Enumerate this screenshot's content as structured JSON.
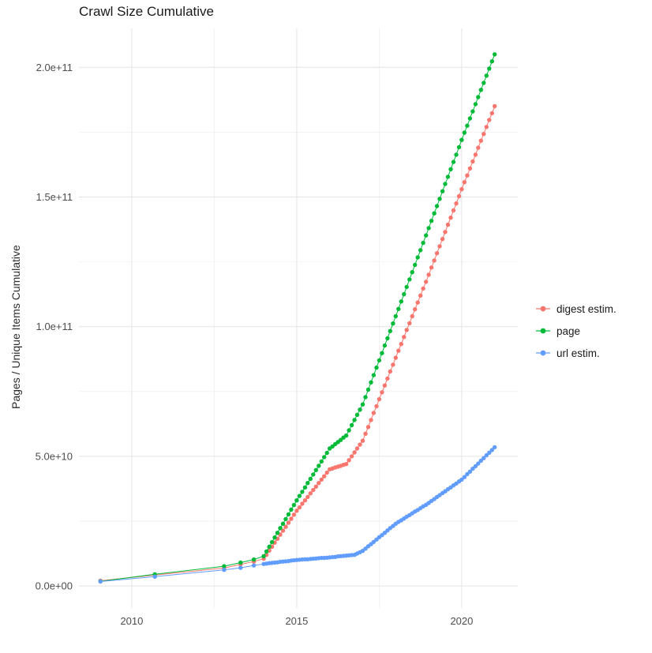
{
  "chart_data": {
    "type": "scatter",
    "title": "Crawl Size Cumulative",
    "xlabel": "",
    "ylabel": "Pages / Unique Items Cumulative",
    "legend_position": "right",
    "grid": true,
    "unit": 1000000000,
    "xlim": [
      2008.4,
      2021.7
    ],
    "ylim_e9": [
      -8.5,
      215
    ],
    "x_ticks": [
      {
        "v": 2010,
        "label": "2010"
      },
      {
        "v": 2015,
        "label": "2015"
      },
      {
        "v": 2020,
        "label": "2020"
      }
    ],
    "x_minor": [
      2012.5,
      2017.5
    ],
    "y_ticks": [
      {
        "v": 0,
        "label": "0.0e+00"
      },
      {
        "v": 50,
        "label": "5.0e+10"
      },
      {
        "v": 100,
        "label": "1.0e+11"
      },
      {
        "v": 150,
        "label": "1.5e+11"
      },
      {
        "v": 200,
        "label": "2.0e+11"
      }
    ],
    "y_minor": [
      25,
      75,
      125,
      175
    ],
    "colors": {
      "grid_major": "#e4e4e4",
      "grid_minor": "#f2f2f2",
      "axis_text": "#4d4d4d"
    },
    "series": [
      {
        "name": "digest estim.",
        "key": "digest-estim",
        "color": "#F8766D",
        "points_e9": [
          [
            2009.05,
            2.0
          ],
          [
            2010.7,
            4.2
          ],
          [
            2012.8,
            6.9
          ],
          [
            2013.3,
            8.3
          ],
          [
            2013.7,
            9.4
          ],
          [
            2014.0,
            10.5
          ],
          [
            2014.083,
            12.0
          ],
          [
            2014.167,
            13.6
          ],
          [
            2014.25,
            15.1
          ],
          [
            2014.333,
            16.7
          ],
          [
            2014.417,
            18.2
          ],
          [
            2014.5,
            19.8
          ],
          [
            2014.583,
            21.3
          ],
          [
            2014.667,
            22.8
          ],
          [
            2014.75,
            24.4
          ],
          [
            2014.833,
            25.9
          ],
          [
            2014.917,
            27.5
          ],
          [
            2015.0,
            29.0
          ],
          [
            2015.083,
            30.3
          ],
          [
            2015.167,
            31.7
          ],
          [
            2015.25,
            33.0
          ],
          [
            2015.333,
            34.3
          ],
          [
            2015.417,
            35.7
          ],
          [
            2015.5,
            37.0
          ],
          [
            2015.583,
            38.3
          ],
          [
            2015.667,
            39.7
          ],
          [
            2015.75,
            41.0
          ],
          [
            2015.833,
            42.3
          ],
          [
            2015.917,
            43.7
          ],
          [
            2016.0,
            45.0
          ],
          [
            2016.083,
            45.3
          ],
          [
            2016.167,
            45.7
          ],
          [
            2016.25,
            46.0
          ],
          [
            2016.333,
            46.3
          ],
          [
            2016.417,
            46.7
          ],
          [
            2016.5,
            47.0
          ],
          [
            2016.583,
            48.5
          ],
          [
            2016.667,
            50.0
          ],
          [
            2016.75,
            51.5
          ],
          [
            2016.833,
            53.0
          ],
          [
            2016.917,
            54.5
          ],
          [
            2017.0,
            56.0
          ],
          [
            2017.083,
            58.7
          ],
          [
            2017.167,
            61.3
          ],
          [
            2017.25,
            64.0
          ],
          [
            2017.333,
            66.7
          ],
          [
            2017.417,
            69.3
          ],
          [
            2017.5,
            72.0
          ],
          [
            2017.583,
            74.7
          ],
          [
            2017.667,
            77.3
          ],
          [
            2017.75,
            80.0
          ],
          [
            2017.833,
            82.7
          ],
          [
            2017.917,
            85.3
          ],
          [
            2018.0,
            88.0
          ],
          [
            2018.083,
            90.7
          ],
          [
            2018.167,
            93.3
          ],
          [
            2018.25,
            96.0
          ],
          [
            2018.333,
            98.7
          ],
          [
            2018.417,
            101.3
          ],
          [
            2018.5,
            104.0
          ],
          [
            2018.583,
            106.7
          ],
          [
            2018.667,
            109.3
          ],
          [
            2018.75,
            112.0
          ],
          [
            2018.833,
            114.7
          ],
          [
            2018.917,
            117.3
          ],
          [
            2019.0,
            120.0
          ],
          [
            2019.083,
            122.8
          ],
          [
            2019.167,
            125.5
          ],
          [
            2019.25,
            128.3
          ],
          [
            2019.333,
            131.0
          ],
          [
            2019.417,
            133.8
          ],
          [
            2019.5,
            136.5
          ],
          [
            2019.583,
            139.3
          ],
          [
            2019.667,
            142.0
          ],
          [
            2019.75,
            144.8
          ],
          [
            2019.833,
            147.5
          ],
          [
            2019.917,
            150.3
          ],
          [
            2020.0,
            153.0
          ],
          [
            2020.083,
            155.7
          ],
          [
            2020.167,
            158.3
          ],
          [
            2020.25,
            161.0
          ],
          [
            2020.333,
            163.7
          ],
          [
            2020.417,
            166.3
          ],
          [
            2020.5,
            169.0
          ],
          [
            2020.583,
            171.7
          ],
          [
            2020.667,
            174.3
          ],
          [
            2020.75,
            177.0
          ],
          [
            2020.833,
            179.7
          ],
          [
            2020.917,
            182.3
          ],
          [
            2021.0,
            185.0
          ]
        ]
      },
      {
        "name": "page",
        "key": "page",
        "color": "#00BA38",
        "points_e9": [
          [
            2009.05,
            1.8
          ],
          [
            2010.7,
            4.5
          ],
          [
            2012.8,
            7.6
          ],
          [
            2013.3,
            9.0
          ],
          [
            2013.7,
            10.2
          ],
          [
            2014.0,
            11.5
          ],
          [
            2014.083,
            13.3
          ],
          [
            2014.167,
            15.1
          ],
          [
            2014.25,
            16.9
          ],
          [
            2014.333,
            18.7
          ],
          [
            2014.417,
            20.5
          ],
          [
            2014.5,
            22.3
          ],
          [
            2014.583,
            24.0
          ],
          [
            2014.667,
            25.8
          ],
          [
            2014.75,
            27.6
          ],
          [
            2014.833,
            29.4
          ],
          [
            2014.917,
            31.2
          ],
          [
            2015.0,
            33.0
          ],
          [
            2015.083,
            34.7
          ],
          [
            2015.167,
            36.3
          ],
          [
            2015.25,
            38.0
          ],
          [
            2015.333,
            39.7
          ],
          [
            2015.417,
            41.3
          ],
          [
            2015.5,
            43.0
          ],
          [
            2015.583,
            44.7
          ],
          [
            2015.667,
            46.3
          ],
          [
            2015.75,
            48.0
          ],
          [
            2015.833,
            49.7
          ],
          [
            2015.917,
            51.3
          ],
          [
            2016.0,
            53.0
          ],
          [
            2016.083,
            53.8
          ],
          [
            2016.167,
            54.7
          ],
          [
            2016.25,
            55.5
          ],
          [
            2016.333,
            56.3
          ],
          [
            2016.417,
            57.2
          ],
          [
            2016.5,
            58.0
          ],
          [
            2016.583,
            60.0
          ],
          [
            2016.667,
            62.0
          ],
          [
            2016.75,
            64.0
          ],
          [
            2016.833,
            66.0
          ],
          [
            2016.917,
            68.0
          ],
          [
            2017.0,
            70.0
          ],
          [
            2017.083,
            72.8
          ],
          [
            2017.167,
            75.7
          ],
          [
            2017.25,
            78.5
          ],
          [
            2017.333,
            81.3
          ],
          [
            2017.417,
            84.2
          ],
          [
            2017.5,
            87.0
          ],
          [
            2017.583,
            89.8
          ],
          [
            2017.667,
            92.7
          ],
          [
            2017.75,
            95.5
          ],
          [
            2017.833,
            98.3
          ],
          [
            2017.917,
            101.2
          ],
          [
            2018.0,
            104.0
          ],
          [
            2018.083,
            106.8
          ],
          [
            2018.167,
            109.7
          ],
          [
            2018.25,
            112.5
          ],
          [
            2018.333,
            115.3
          ],
          [
            2018.417,
            118.2
          ],
          [
            2018.5,
            121.0
          ],
          [
            2018.583,
            123.8
          ],
          [
            2018.667,
            126.7
          ],
          [
            2018.75,
            129.5
          ],
          [
            2018.833,
            132.3
          ],
          [
            2018.917,
            135.2
          ],
          [
            2019.0,
            138.0
          ],
          [
            2019.083,
            140.8
          ],
          [
            2019.167,
            143.7
          ],
          [
            2019.25,
            146.5
          ],
          [
            2019.333,
            149.3
          ],
          [
            2019.417,
            152.2
          ],
          [
            2019.5,
            155.0
          ],
          [
            2019.583,
            157.8
          ],
          [
            2019.667,
            160.7
          ],
          [
            2019.75,
            163.5
          ],
          [
            2019.833,
            166.3
          ],
          [
            2019.917,
            169.2
          ],
          [
            2020.0,
            172.0
          ],
          [
            2020.083,
            174.8
          ],
          [
            2020.167,
            177.5
          ],
          [
            2020.25,
            180.3
          ],
          [
            2020.333,
            183.0
          ],
          [
            2020.417,
            185.8
          ],
          [
            2020.5,
            188.5
          ],
          [
            2020.583,
            191.3
          ],
          [
            2020.667,
            194.0
          ],
          [
            2020.75,
            196.8
          ],
          [
            2020.833,
            199.5
          ],
          [
            2020.917,
            202.3
          ],
          [
            2021.0,
            205.0
          ]
        ]
      },
      {
        "name": "url estim.",
        "key": "url-estim",
        "color": "#619CFF",
        "points_e9": [
          [
            2009.05,
            1.7
          ],
          [
            2010.7,
            3.6
          ],
          [
            2012.8,
            6.2
          ],
          [
            2013.3,
            7.0
          ],
          [
            2013.7,
            7.9
          ],
          [
            2014.0,
            8.5
          ],
          [
            2014.083,
            8.6
          ],
          [
            2014.167,
            8.8
          ],
          [
            2014.25,
            8.9
          ],
          [
            2014.333,
            9.0
          ],
          [
            2014.417,
            9.1
          ],
          [
            2014.5,
            9.3
          ],
          [
            2014.583,
            9.4
          ],
          [
            2014.667,
            9.5
          ],
          [
            2014.75,
            9.6
          ],
          [
            2014.833,
            9.8
          ],
          [
            2014.917,
            9.9
          ],
          [
            2015.0,
            10.0
          ],
          [
            2015.083,
            10.1
          ],
          [
            2015.167,
            10.2
          ],
          [
            2015.25,
            10.3
          ],
          [
            2015.333,
            10.3
          ],
          [
            2015.417,
            10.4
          ],
          [
            2015.5,
            10.5
          ],
          [
            2015.583,
            10.6
          ],
          [
            2015.667,
            10.7
          ],
          [
            2015.75,
            10.8
          ],
          [
            2015.833,
            10.8
          ],
          [
            2015.917,
            10.9
          ],
          [
            2016.0,
            11.0
          ],
          [
            2016.083,
            11.1
          ],
          [
            2016.167,
            11.2
          ],
          [
            2016.25,
            11.4
          ],
          [
            2016.333,
            11.5
          ],
          [
            2016.417,
            11.6
          ],
          [
            2016.5,
            11.7
          ],
          [
            2016.583,
            11.8
          ],
          [
            2016.667,
            11.9
          ],
          [
            2016.75,
            12.0
          ],
          [
            2016.833,
            12.5
          ],
          [
            2016.917,
            13.0
          ],
          [
            2017.0,
            13.5
          ],
          [
            2017.083,
            14.4
          ],
          [
            2017.167,
            15.3
          ],
          [
            2017.25,
            16.1
          ],
          [
            2017.333,
            17.0
          ],
          [
            2017.417,
            17.9
          ],
          [
            2017.5,
            18.8
          ],
          [
            2017.583,
            19.6
          ],
          [
            2017.667,
            20.5
          ],
          [
            2017.75,
            21.4
          ],
          [
            2017.833,
            22.3
          ],
          [
            2017.917,
            23.1
          ],
          [
            2018.0,
            24.0
          ],
          [
            2018.083,
            24.7
          ],
          [
            2018.167,
            25.3
          ],
          [
            2018.25,
            26.0
          ],
          [
            2018.333,
            26.7
          ],
          [
            2018.417,
            27.3
          ],
          [
            2018.5,
            28.0
          ],
          [
            2018.583,
            28.7
          ],
          [
            2018.667,
            29.3
          ],
          [
            2018.75,
            30.0
          ],
          [
            2018.833,
            30.7
          ],
          [
            2018.917,
            31.3
          ],
          [
            2019.0,
            32.0
          ],
          [
            2019.083,
            32.8
          ],
          [
            2019.167,
            33.5
          ],
          [
            2019.25,
            34.3
          ],
          [
            2019.333,
            35.0
          ],
          [
            2019.417,
            35.8
          ],
          [
            2019.5,
            36.5
          ],
          [
            2019.583,
            37.3
          ],
          [
            2019.667,
            38.0
          ],
          [
            2019.75,
            38.8
          ],
          [
            2019.833,
            39.5
          ],
          [
            2019.917,
            40.3
          ],
          [
            2020.0,
            41.0
          ],
          [
            2020.083,
            42.0
          ],
          [
            2020.167,
            43.1
          ],
          [
            2020.25,
            44.1
          ],
          [
            2020.333,
            45.2
          ],
          [
            2020.417,
            46.2
          ],
          [
            2020.5,
            47.2
          ],
          [
            2020.583,
            48.3
          ],
          [
            2020.667,
            49.3
          ],
          [
            2020.75,
            50.4
          ],
          [
            2020.833,
            51.4
          ],
          [
            2020.917,
            52.4
          ],
          [
            2021.0,
            53.5
          ]
        ]
      }
    ]
  }
}
